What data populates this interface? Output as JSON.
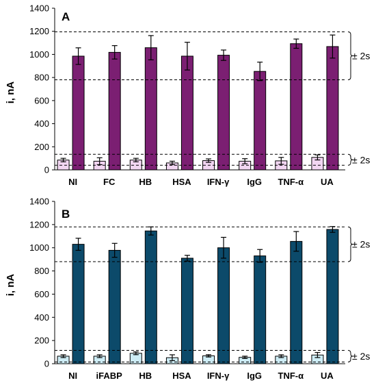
{
  "chart_data": [
    {
      "type": "bar",
      "panel_label": "A",
      "categories": [
        "NI",
        "FC",
        "HB",
        "HSA",
        "IFN-γ",
        "IgG",
        "TNF-α",
        "UA"
      ],
      "ylabel": "i, nA",
      "ylim": [
        0,
        1400
      ],
      "yticks": [
        0,
        200,
        400,
        600,
        800,
        1000,
        1200,
        1400
      ],
      "series": [
        {
          "values": [
            85,
            75,
            85,
            60,
            80,
            75,
            78,
            108
          ],
          "errors": [
            15,
            30,
            15,
            15,
            15,
            22,
            30,
            22
          ],
          "color": "#f2d6f2"
        },
        {
          "values": [
            985,
            1018,
            1058,
            985,
            993,
            853,
            1093,
            1068
          ],
          "errors": [
            72,
            58,
            105,
            120,
            45,
            80,
            40,
            100
          ],
          "color": "#7b1f72"
        }
      ],
      "bands": [
        {
          "low": 780,
          "high": 1195,
          "label": "± 2s"
        },
        {
          "low": 40,
          "high": 135,
          "label": "± 2s"
        }
      ],
      "grid": false
    },
    {
      "type": "bar",
      "panel_label": "B",
      "categories": [
        "NI",
        "iFABP",
        "HB",
        "HSA",
        "IFN-γ",
        "IgG",
        "TNF-α",
        "UA"
      ],
      "ylabel": "i, nA",
      "ylim": [
        0,
        1400
      ],
      "yticks": [
        0,
        200,
        400,
        600,
        800,
        1000,
        1200,
        1400
      ],
      "series": [
        {
          "values": [
            65,
            65,
            90,
            52,
            68,
            55,
            65,
            75
          ],
          "errors": [
            12,
            12,
            12,
            25,
            10,
            10,
            12,
            22
          ],
          "color": "#cdecf5"
        },
        {
          "values": [
            1030,
            978,
            1145,
            910,
            1000,
            930,
            1055,
            1158
          ],
          "errors": [
            52,
            60,
            35,
            25,
            90,
            55,
            85,
            25
          ],
          "color": "#0c4a6a"
        }
      ],
      "bands": [
        {
          "low": 880,
          "high": 1180,
          "label": "± 2s"
        },
        {
          "low": 15,
          "high": 115,
          "label": "± 2s"
        }
      ],
      "grid": false
    }
  ]
}
